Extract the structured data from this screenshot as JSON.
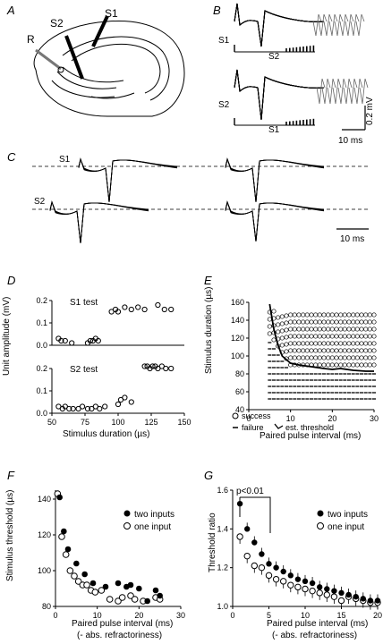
{
  "panels": {
    "A": {
      "letter": "A",
      "labels": {
        "s1": "S1",
        "s2": "S2",
        "r": "R"
      }
    },
    "B": {
      "letter": "B",
      "label_s1": "S1",
      "label_s2_under": "S2",
      "label_s2": "S2",
      "label_s1_under": "S1",
      "scale_v": "0.2 mV",
      "scale_t": "10 ms"
    },
    "C": {
      "letter": "C",
      "label_s1": "S1",
      "label_s2": "S2",
      "scale_t": "10 ms"
    },
    "D": {
      "letter": "D",
      "chart_data": {
        "type": "scatter",
        "subplots": [
          {
            "title": "S1 test",
            "xlim": [
              50,
              150
            ],
            "ylim": [
              0,
              0.2
            ],
            "x": [
              55,
              57,
              60,
              65,
              77,
              79,
              81,
              83,
              85,
              95,
              98,
              100,
              105,
              110,
              115,
              120,
              130,
              135,
              140
            ],
            "y": [
              0.03,
              0.02,
              0.02,
              0.01,
              0.01,
              0.02,
              0.02,
              0.03,
              0.02,
              0.15,
              0.16,
              0.15,
              0.17,
              0.16,
              0.17,
              0.16,
              0.18,
              0.16,
              0.16
            ]
          },
          {
            "title": "S2 test",
            "xlim": [
              50,
              150
            ],
            "ylim": [
              0,
              0.2
            ],
            "x": [
              55,
              58,
              60,
              63,
              66,
              70,
              73,
              77,
              80,
              83,
              86,
              90,
              100,
              102,
              105,
              110,
              120,
              122,
              124,
              126,
              128,
              130,
              133,
              136,
              140
            ],
            "y": [
              0.03,
              0.02,
              0.03,
              0.02,
              0.02,
              0.02,
              0.03,
              0.02,
              0.02,
              0.03,
              0.02,
              0.03,
              0.04,
              0.06,
              0.07,
              0.05,
              0.21,
              0.21,
              0.2,
              0.21,
              0.21,
              0.2,
              0.21,
              0.2,
              0.2
            ]
          }
        ],
        "ylabel": "Unit amplitude (mV)",
        "xlabel": "Stimulus duration (µs)",
        "xticks": [
          50,
          75,
          100,
          125,
          150
        ],
        "yticks": [
          0,
          0.1,
          0.2
        ],
        "ytick_labels": [
          "0.0",
          "0.1",
          "0.2"
        ]
      }
    },
    "E": {
      "letter": "E",
      "chart_data": {
        "type": "scatter",
        "xlim": [
          0,
          30
        ],
        "ylim": [
          40,
          160
        ],
        "xticks": [
          0,
          10,
          20,
          30
        ],
        "yticks": [
          40,
          60,
          80,
          100,
          120,
          140,
          160
        ],
        "xlabel": "Paired pulse interval (ms)",
        "ylabel": "Stimulus duration (µs)",
        "legend": [
          "success",
          "failure",
          "est. threshold"
        ],
        "success_columns": [
          5,
          6,
          7,
          8,
          9,
          10,
          11,
          12,
          13,
          14,
          15,
          16,
          17,
          18,
          19,
          20,
          21,
          22,
          23,
          24,
          25,
          26,
          27,
          28,
          29,
          30
        ],
        "threshold": {
          "x": [
            5,
            6,
            7,
            8,
            10,
            12,
            15,
            18,
            20,
            22,
            25,
            28,
            30
          ],
          "y": [
            158,
            130,
            112,
            100,
            92,
            90,
            88,
            86,
            85,
            86,
            84,
            83,
            83
          ]
        }
      }
    },
    "F": {
      "letter": "F",
      "chart_data": {
        "type": "scatter",
        "xlim": [
          0,
          30
        ],
        "ylim": [
          80,
          145
        ],
        "xticks": [
          0,
          10,
          20,
          30
        ],
        "yticks": [
          80,
          100,
          120,
          140
        ],
        "xlabel": "Paired pulse interval (ms)",
        "xlabel2": "(- abs. refractoriness)",
        "ylabel": "Stimulus threshold (µs)",
        "series": [
          {
            "name": "two inputs",
            "x": [
              1,
              2,
              3,
              5,
              7,
              9,
              12,
              15,
              17,
              18,
              20,
              22,
              24,
              25
            ],
            "y": [
              141,
              122,
              112,
              104,
              98,
              93,
              91,
              93,
              91,
              92,
              90,
              83,
              89,
              86
            ]
          },
          {
            "name": "one input",
            "x": [
              0.5,
              1.5,
              2.5,
              3.5,
              4.5,
              5.5,
              6.5,
              7.5,
              8.5,
              9.5,
              11,
              13,
              15,
              16,
              18,
              19,
              21,
              24,
              25
            ],
            "y": [
              143,
              119,
              109,
              100,
              97,
              94,
              92,
              92,
              89,
              88,
              89,
              84,
              83,
              85,
              86,
              84,
              83,
              85,
              84
            ]
          }
        ]
      }
    },
    "G": {
      "letter": "G",
      "annotation": "p<0.01",
      "chart_data": {
        "type": "scatter",
        "xlim": [
          0,
          20
        ],
        "ylim": [
          1.0,
          1.6
        ],
        "xticks": [
          0,
          5,
          10,
          15,
          20
        ],
        "yticks": [
          1.0,
          1.2,
          1.4,
          1.6
        ],
        "ytick_labels": [
          "1.0",
          "1.2",
          "1.4",
          "1.6"
        ],
        "xlabel": "Paired pulse interval (ms)",
        "xlabel2": "(- abs. refractoriness)",
        "ylabel": "Threshold ratio",
        "series": [
          {
            "name": "two inputs",
            "x": [
              1,
              2,
              3,
              4,
              5,
              6,
              7,
              8,
              9,
              10,
              11,
              12,
              13,
              14,
              15,
              16,
              17,
              18,
              19,
              20
            ],
            "y": [
              1.53,
              1.4,
              1.33,
              1.27,
              1.22,
              1.2,
              1.18,
              1.16,
              1.14,
              1.13,
              1.12,
              1.1,
              1.09,
              1.08,
              1.07,
              1.06,
              1.05,
              1.04,
              1.03,
              1.03
            ]
          },
          {
            "name": "one input",
            "x": [
              1,
              2,
              3,
              4,
              5,
              6,
              7,
              8,
              9,
              10,
              11,
              12,
              13,
              14,
              15,
              16,
              17,
              18,
              19,
              20
            ],
            "y": [
              1.36,
              1.26,
              1.21,
              1.2,
              1.16,
              1.14,
              1.13,
              1.11,
              1.1,
              1.09,
              1.08,
              1.07,
              1.06,
              1.05,
              1.03,
              1.05,
              1.04,
              1.03,
              1.02,
              1.02
            ]
          }
        ]
      }
    }
  }
}
